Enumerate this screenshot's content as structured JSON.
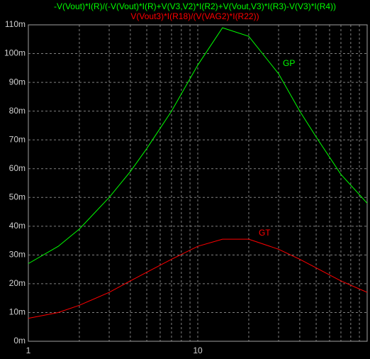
{
  "chart_data": {
    "type": "line",
    "titles": [
      {
        "text": "-V(Vout)*I(R)/(-V(Vout)*I(R)+V(V3,V2)*I(R2)+V(Vout,V3)*I(R3)-V(V3)*I(R4))",
        "color": "#00ff00"
      },
      {
        "text": "V(Vout3)*I(R18)/(V(VAG2)*I(R22))",
        "color": "#ff0000"
      }
    ],
    "x": [
      1,
      1.5,
      2,
      3,
      4,
      5,
      7,
      10,
      14,
      20,
      30,
      40,
      50,
      70,
      100
    ],
    "series": [
      {
        "name": "GP",
        "color": "#00ff00",
        "values": [
          0.027,
          0.033,
          0.039,
          0.05,
          0.059,
          0.067,
          0.08,
          0.096,
          0.109,
          0.106,
          0.093,
          0.08,
          0.071,
          0.058,
          0.048
        ]
      },
      {
        "name": "GT",
        "color": "#ff0000",
        "values": [
          0.008,
          0.01,
          0.0125,
          0.017,
          0.021,
          0.024,
          0.0285,
          0.033,
          0.0355,
          0.0355,
          0.032,
          0.0285,
          0.0255,
          0.021,
          0.017
        ]
      }
    ],
    "xlog": true,
    "xlim": [
      1,
      100
    ],
    "xticks": [
      1,
      10
    ],
    "xgrid_minor": [
      2,
      3,
      4,
      5,
      6,
      7,
      8,
      9,
      20,
      30,
      40,
      50,
      60,
      70,
      80,
      90
    ],
    "ylim": [
      0,
      0.11
    ],
    "yticks": [
      {
        "value": 0,
        "label": "0m"
      },
      {
        "value": 0.01,
        "label": "10m"
      },
      {
        "value": 0.02,
        "label": "20m"
      },
      {
        "value": 0.03,
        "label": "30m"
      },
      {
        "value": 0.04,
        "label": "40m"
      },
      {
        "value": 0.05,
        "label": "50m"
      },
      {
        "value": 0.06,
        "label": "60m"
      },
      {
        "value": 0.07,
        "label": "70m"
      },
      {
        "value": 0.08,
        "label": "80m"
      },
      {
        "value": 0.09,
        "label": "90m"
      },
      {
        "value": 0.1,
        "label": "100m"
      },
      {
        "value": 0.11,
        "label": "110m"
      }
    ],
    "grid": true
  }
}
